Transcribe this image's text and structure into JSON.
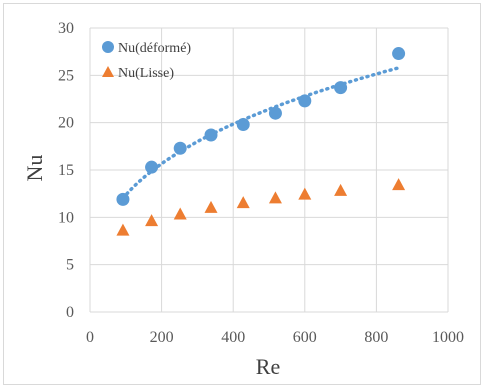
{
  "chart_data": {
    "type": "scatter",
    "xlabel": "Re",
    "ylabel": "Nu",
    "xlim": [
      0,
      1000
    ],
    "ylim": [
      0,
      30
    ],
    "xticks": [
      0,
      200,
      400,
      600,
      800,
      1000
    ],
    "yticks": [
      0,
      5,
      10,
      15,
      20,
      25,
      30
    ],
    "grid": true,
    "legend_position": "top-left",
    "series": [
      {
        "name": "Nu(déformé)",
        "marker": "circle",
        "color": "#5b9bd5",
        "trendline": "dotted",
        "x": [
          92,
          172,
          252,
          338,
          428,
          518,
          600,
          700,
          862
        ],
        "y": [
          11.9,
          15.3,
          17.3,
          18.7,
          19.8,
          21.0,
          22.3,
          23.7,
          27.3
        ]
      },
      {
        "name": "Nu(Lisse)",
        "marker": "triangle",
        "color": "#ed7d31",
        "x": [
          92,
          172,
          252,
          338,
          428,
          518,
          600,
          700,
          862
        ],
        "y": [
          8.6,
          9.6,
          10.3,
          11.0,
          11.5,
          12.0,
          12.4,
          12.8,
          13.4
        ]
      }
    ]
  }
}
